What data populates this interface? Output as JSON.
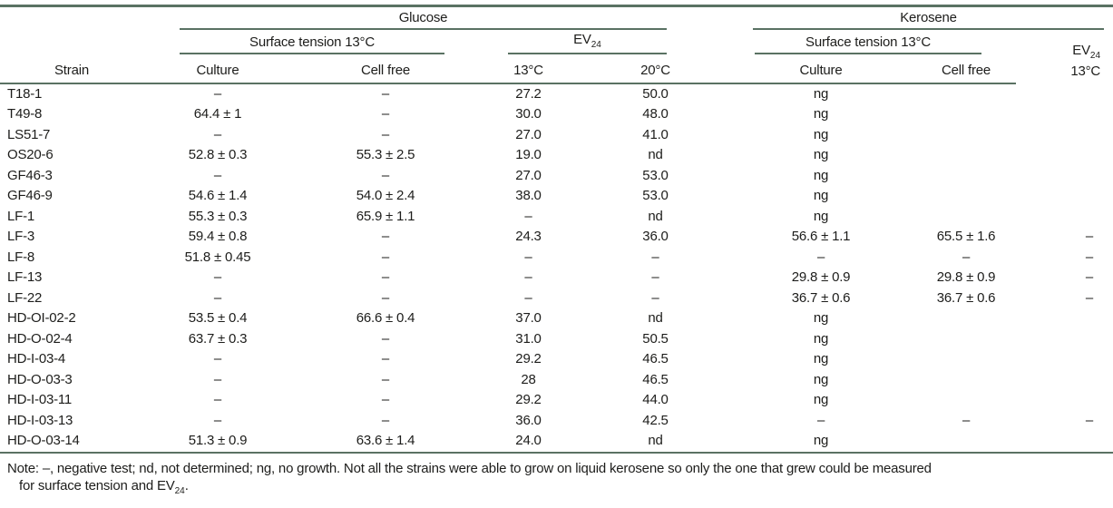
{
  "table": {
    "groups": {
      "glucose": "Glucose",
      "kerosene": "Kerosene"
    },
    "subgroups": {
      "g_surface_tension": "Surface tension 13°C",
      "g_ev_label": "EV",
      "g_ev_sub": "24",
      "k_surface_tension": "Surface tension 13°C",
      "k_ev_label": "EV",
      "k_ev_sub": "24",
      "k_ev_temp": "13°C"
    },
    "columns": {
      "strain": "Strain",
      "g_culture": "Culture",
      "g_cellfree": "Cell free",
      "g_ev13": "13°C",
      "g_ev20": "20°C",
      "k_culture": "Culture",
      "k_cellfree": "Cell free"
    },
    "rows": [
      [
        "T18-1",
        "–",
        "–",
        "27.2",
        "50.0",
        "ng",
        "",
        ""
      ],
      [
        "T49-8",
        "64.4 ± 1",
        "–",
        "30.0",
        "48.0",
        "ng",
        "",
        ""
      ],
      [
        "LS51-7",
        "–",
        "–",
        "27.0",
        "41.0",
        "ng",
        "",
        ""
      ],
      [
        "OS20-6",
        "52.8 ± 0.3",
        "55.3 ± 2.5",
        "19.0",
        "nd",
        "ng",
        "",
        ""
      ],
      [
        "GF46-3",
        "–",
        "–",
        "27.0",
        "53.0",
        "ng",
        "",
        ""
      ],
      [
        "GF46-9",
        "54.6 ± 1.4",
        "54.0 ± 2.4",
        "38.0",
        "53.0",
        "ng",
        "",
        ""
      ],
      [
        "LF-1",
        "55.3 ± 0.3",
        "65.9 ± 1.1",
        "–",
        "nd",
        "ng",
        "",
        ""
      ],
      [
        "LF-3",
        "59.4 ± 0.8",
        "–",
        "24.3",
        "36.0",
        "56.6 ± 1.1",
        "65.5 ± 1.6",
        "–"
      ],
      [
        "LF-8",
        "51.8 ± 0.45",
        "–",
        "–",
        "–",
        "–",
        "–",
        "–"
      ],
      [
        "LF-13",
        "–",
        "–",
        "–",
        "–",
        "29.8 ± 0.9",
        "29.8 ± 0.9",
        "–"
      ],
      [
        "LF-22",
        "–",
        "–",
        "–",
        "–",
        "36.7 ± 0.6",
        "36.7 ± 0.6",
        "–"
      ],
      [
        "HD-OI-02-2",
        "53.5 ± 0.4",
        "66.6 ± 0.4",
        "37.0",
        "nd",
        "ng",
        "",
        ""
      ],
      [
        "HD-O-02-4",
        "63.7 ± 0.3",
        "–",
        "31.0",
        "50.5",
        "ng",
        "",
        ""
      ],
      [
        "HD-I-03-4",
        "–",
        "–",
        "29.2",
        "46.5",
        "ng",
        "",
        ""
      ],
      [
        "HD-O-03-3",
        "–",
        "–",
        "28",
        "46.5",
        "ng",
        "",
        ""
      ],
      [
        "HD-I-03-11",
        "–",
        "–",
        "29.2",
        "44.0",
        "ng",
        "",
        ""
      ],
      [
        "HD-I-03-13",
        "–",
        "–",
        "36.0",
        "42.5",
        "–",
        "–",
        "–"
      ],
      [
        "HD-O-03-14",
        "51.3 ± 0.9",
        "63.6 ± 1.4",
        "24.0",
        "nd",
        "ng",
        "",
        ""
      ]
    ]
  },
  "note": {
    "line1": "Note: –, negative test; nd, not determined; ng, no growth. Not all the strains were able to grow on liquid kerosene so only the one that grew could be measured",
    "line2_before_sub": "for surface tension and EV",
    "line2_sub": "24",
    "line2_after": "."
  },
  "colors": {
    "rule_green": "#5a7263",
    "text": "#1d1d1b"
  }
}
